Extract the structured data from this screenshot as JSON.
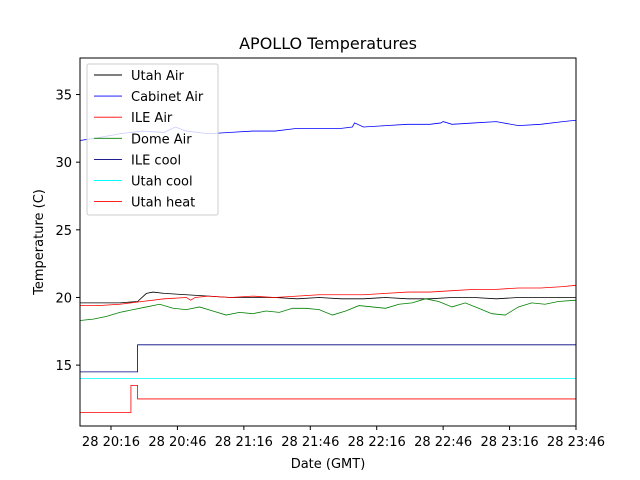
{
  "chart_data": {
    "type": "line",
    "title": "APOLLO Temperatures",
    "xlabel": "Date (GMT)",
    "ylabel": "Temperature (C)",
    "x_unit": "minutes since 28 20:00 GMT",
    "xlim": [
      2,
      226
    ],
    "ylim": [
      10.5,
      37.7
    ],
    "grid": false,
    "legend_position": "top-left",
    "x_ticks": [
      {
        "value": 16,
        "label": "28 20:16"
      },
      {
        "value": 46,
        "label": "28 20:46"
      },
      {
        "value": 76,
        "label": "28 21:16"
      },
      {
        "value": 106,
        "label": "28 21:46"
      },
      {
        "value": 136,
        "label": "28 22:16"
      },
      {
        "value": 166,
        "label": "28 22:46"
      },
      {
        "value": 196,
        "label": "28 23:16"
      },
      {
        "value": 226,
        "label": "28 23:46"
      }
    ],
    "y_ticks": [
      {
        "value": 15,
        "label": "15"
      },
      {
        "value": 20,
        "label": "20"
      },
      {
        "value": 25,
        "label": "25"
      },
      {
        "value": 30,
        "label": "30"
      },
      {
        "value": 35,
        "label": "35"
      }
    ],
    "series": [
      {
        "name": "Utah Air",
        "color": "#000000",
        "x": [
          2,
          10,
          20,
          28,
          30,
          32,
          35,
          40,
          50,
          60,
          70,
          80,
          90,
          100,
          110,
          120,
          130,
          140,
          150,
          160,
          170,
          180,
          190,
          200,
          210,
          220,
          226
        ],
        "y": [
          19.6,
          19.6,
          19.6,
          19.7,
          20.0,
          20.3,
          20.4,
          20.3,
          20.2,
          20.1,
          20.0,
          20.0,
          20.0,
          19.9,
          20.0,
          19.9,
          19.9,
          20.0,
          19.9,
          19.9,
          20.0,
          20.0,
          19.9,
          20.0,
          20.0,
          20.0,
          20.0
        ]
      },
      {
        "name": "Cabinet Air",
        "color": "#0000ff",
        "x": [
          2,
          10,
          20,
          30,
          40,
          45,
          50,
          55,
          60,
          70,
          80,
          90,
          100,
          110,
          120,
          125,
          126,
          130,
          140,
          150,
          160,
          165,
          166,
          170,
          180,
          190,
          200,
          210,
          220,
          226
        ],
        "y": [
          31.6,
          31.8,
          32.1,
          32.3,
          32.2,
          32.6,
          32.3,
          32.2,
          32.1,
          32.2,
          32.3,
          32.3,
          32.5,
          32.5,
          32.5,
          32.6,
          32.9,
          32.6,
          32.7,
          32.8,
          32.8,
          32.9,
          33.0,
          32.8,
          32.9,
          33.0,
          32.7,
          32.8,
          33.0,
          33.1
        ]
      },
      {
        "name": "ILE Air",
        "color": "#ff0000",
        "x": [
          2,
          10,
          20,
          30,
          40,
          50,
          52,
          54,
          60,
          70,
          80,
          90,
          100,
          110,
          120,
          130,
          140,
          150,
          160,
          170,
          180,
          190,
          200,
          210,
          220,
          226
        ],
        "y": [
          19.4,
          19.4,
          19.5,
          19.7,
          19.9,
          20.0,
          19.8,
          20.0,
          20.1,
          20.0,
          20.1,
          20.0,
          20.1,
          20.2,
          20.2,
          20.2,
          20.3,
          20.4,
          20.4,
          20.5,
          20.6,
          20.6,
          20.7,
          20.7,
          20.8,
          20.9
        ]
      },
      {
        "name": "Dome Air",
        "color": "#008000",
        "x": [
          2,
          8,
          14,
          20,
          26,
          32,
          38,
          44,
          50,
          56,
          62,
          68,
          74,
          80,
          86,
          92,
          98,
          104,
          110,
          116,
          122,
          128,
          134,
          140,
          146,
          152,
          158,
          164,
          170,
          176,
          182,
          188,
          194,
          200,
          206,
          212,
          218,
          226
        ],
        "y": [
          18.3,
          18.4,
          18.6,
          18.9,
          19.1,
          19.3,
          19.5,
          19.2,
          19.1,
          19.3,
          19.0,
          18.7,
          18.9,
          18.8,
          19.0,
          18.9,
          19.2,
          19.2,
          19.1,
          18.7,
          19.0,
          19.4,
          19.3,
          19.2,
          19.5,
          19.6,
          19.9,
          19.7,
          19.3,
          19.6,
          19.2,
          18.8,
          18.7,
          19.3,
          19.6,
          19.5,
          19.7,
          19.8
        ]
      },
      {
        "name": "ILE cool",
        "color": "#000080",
        "step": true,
        "x": [
          2,
          28,
          28,
          226
        ],
        "y": [
          14.5,
          14.5,
          16.5,
          16.5
        ]
      },
      {
        "name": "Utah cool",
        "color": "#00ffff",
        "step": true,
        "x": [
          2,
          226
        ],
        "y": [
          14.0,
          14.0
        ]
      },
      {
        "name": "Utah heat",
        "color": "#ff0000",
        "step": true,
        "x": [
          2,
          25,
          25,
          28,
          28,
          226
        ],
        "y": [
          11.5,
          11.5,
          13.5,
          13.5,
          12.5,
          12.5
        ]
      }
    ]
  }
}
